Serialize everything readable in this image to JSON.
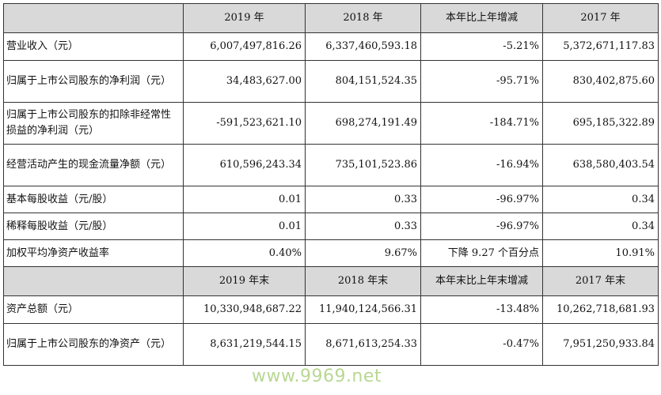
{
  "header1": [
    "",
    "2019 年",
    "2018 年",
    "本年比上年增减",
    "2017 年"
  ],
  "rows1": [
    {
      "label": "营业收入（元）",
      "v2019": "6,007,497,816.26",
      "v2018": "6,337,460,593.18",
      "change": "-5.21%",
      "v2017": "5,372,671,117.83"
    },
    {
      "label": "归属于上市公司股东的净利润（元）",
      "v2019": "34,483,627.00",
      "v2018": "804,151,524.35",
      "change": "-95.71%",
      "v2017": "830,402,875.60"
    },
    {
      "label": "归属于上市公司股东的扣除非经常性损益的净利润（元）",
      "v2019": "-591,523,621.10",
      "v2018": "698,274,191.49",
      "change": "-184.71%",
      "v2017": "695,185,322.89"
    },
    {
      "label": "经营活动产生的现金流量净额（元）",
      "v2019": "610,596,243.34",
      "v2018": "735,101,523.86",
      "change": "-16.94%",
      "v2017": "638,580,403.54"
    },
    {
      "label": "基本每股收益（元/股）",
      "v2019": "0.01",
      "v2018": "0.33",
      "change": "-96.97%",
      "v2017": "0.34"
    },
    {
      "label": "稀释每股收益（元/股）",
      "v2019": "0.01",
      "v2018": "0.33",
      "change": "-96.97%",
      "v2017": "0.34"
    },
    {
      "label": "加权平均净资产收益率",
      "v2019": "0.40%",
      "v2018": "9.67%",
      "change": "下降 9.27 个百分点",
      "v2017": "10.91%"
    }
  ],
  "header2": [
    "",
    "2019 年末",
    "2018 年末",
    "本年末比上年末增减",
    "2017 年末"
  ],
  "rows2": [
    {
      "label": "资产总额（元）",
      "v2019": "10,330,948,687.22",
      "v2018": "11,940,124,566.31",
      "change": "-13.48%",
      "v2017": "10,262,718,681.93"
    },
    {
      "label": "归属于上市公司股东的净资产（元）",
      "v2019": "8,631,219,544.15",
      "v2018": "8,671,613,254.33",
      "change": "-0.47%",
      "v2017": "7,951,250,933.84"
    }
  ],
  "watermark": "www.9969.net"
}
